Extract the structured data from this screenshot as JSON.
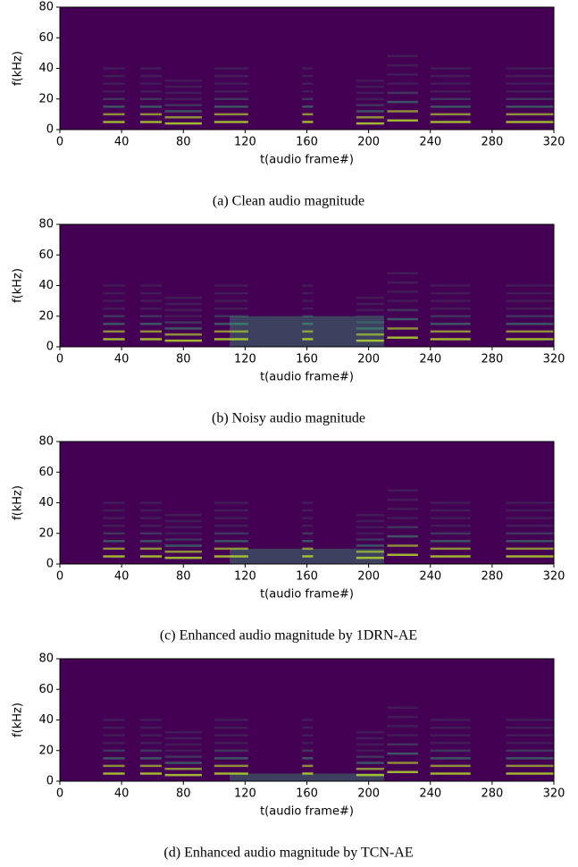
{
  "chart_data": [
    {
      "type": "spectrogram",
      "caption": "(a) Clean audio magnitude",
      "xlabel": "t(audio frame#)",
      "ylabel": "f(kHz)",
      "xlim": [
        0,
        320
      ],
      "ylim": [
        0,
        80
      ],
      "xticks": [
        0,
        40,
        80,
        120,
        160,
        200,
        240,
        280,
        320
      ],
      "yticks": [
        0,
        20,
        40,
        60,
        80
      ],
      "background": "#440154",
      "color": "#35b779",
      "segments": [
        {
          "t": [
            28,
            42
          ],
          "f0": 5
        },
        {
          "t": [
            52,
            66
          ],
          "f0": 5
        },
        {
          "t": [
            68,
            92
          ],
          "f0": 4
        },
        {
          "t": [
            100,
            122
          ],
          "f0": 5
        },
        {
          "t": [
            157,
            164
          ],
          "f0": 5
        },
        {
          "t": [
            192,
            210
          ],
          "f0": 4
        },
        {
          "t": [
            212,
            232
          ],
          "f0": 6
        },
        {
          "t": [
            240,
            266
          ],
          "f0": 5
        },
        {
          "t": [
            289,
            320
          ],
          "f0": 5
        }
      ]
    },
    {
      "type": "spectrogram",
      "caption": "(b) Noisy audio magnitude",
      "xlabel": "t(audio frame#)",
      "ylabel": "f(kHz)",
      "xlim": [
        0,
        320
      ],
      "ylim": [
        0,
        80
      ],
      "xticks": [
        0,
        40,
        80,
        120,
        160,
        200,
        240,
        280,
        320
      ],
      "yticks": [
        0,
        20,
        40,
        60,
        80
      ],
      "background": "#440154",
      "color": "#35b779",
      "noise": {
        "t": [
          110,
          210
        ],
        "fmax": 20
      },
      "segments": [
        {
          "t": [
            28,
            42
          ],
          "f0": 5
        },
        {
          "t": [
            52,
            66
          ],
          "f0": 5
        },
        {
          "t": [
            68,
            92
          ],
          "f0": 4
        },
        {
          "t": [
            100,
            122
          ],
          "f0": 5
        },
        {
          "t": [
            157,
            164
          ],
          "f0": 5
        },
        {
          "t": [
            192,
            210
          ],
          "f0": 4
        },
        {
          "t": [
            212,
            232
          ],
          "f0": 6
        },
        {
          "t": [
            240,
            266
          ],
          "f0": 5
        },
        {
          "t": [
            289,
            320
          ],
          "f0": 5
        }
      ]
    },
    {
      "type": "spectrogram",
      "caption": "(c) Enhanced audio magnitude by 1DRN-AE",
      "xlabel": "t(audio frame#)",
      "ylabel": "f(kHz)",
      "xlim": [
        0,
        320
      ],
      "ylim": [
        0,
        80
      ],
      "xticks": [
        0,
        40,
        80,
        120,
        160,
        200,
        240,
        280,
        320
      ],
      "yticks": [
        0,
        20,
        40,
        60,
        80
      ],
      "background": "#440154",
      "color": "#35b779",
      "noise": {
        "t": [
          110,
          210
        ],
        "fmax": 10
      },
      "segments": [
        {
          "t": [
            28,
            42
          ],
          "f0": 5
        },
        {
          "t": [
            52,
            66
          ],
          "f0": 5
        },
        {
          "t": [
            68,
            92
          ],
          "f0": 4
        },
        {
          "t": [
            100,
            122
          ],
          "f0": 5
        },
        {
          "t": [
            157,
            164
          ],
          "f0": 5
        },
        {
          "t": [
            192,
            210
          ],
          "f0": 4
        },
        {
          "t": [
            212,
            232
          ],
          "f0": 6
        },
        {
          "t": [
            240,
            266
          ],
          "f0": 5
        },
        {
          "t": [
            289,
            320
          ],
          "f0": 5
        }
      ]
    },
    {
      "type": "spectrogram",
      "caption": "(d) Enhanced audio magnitude by TCN-AE",
      "xlabel": "t(audio frame#)",
      "ylabel": "f(kHz)",
      "xlim": [
        0,
        320
      ],
      "ylim": [
        0,
        80
      ],
      "xticks": [
        0,
        40,
        80,
        120,
        160,
        200,
        240,
        280,
        320
      ],
      "yticks": [
        0,
        20,
        40,
        60,
        80
      ],
      "background": "#440154",
      "color": "#35b779",
      "noise": {
        "t": [
          110,
          210
        ],
        "fmax": 5
      },
      "segments": [
        {
          "t": [
            28,
            42
          ],
          "f0": 5
        },
        {
          "t": [
            52,
            66
          ],
          "f0": 5
        },
        {
          "t": [
            68,
            92
          ],
          "f0": 4
        },
        {
          "t": [
            100,
            122
          ],
          "f0": 5
        },
        {
          "t": [
            157,
            164
          ],
          "f0": 5
        },
        {
          "t": [
            192,
            210
          ],
          "f0": 4
        },
        {
          "t": [
            212,
            232
          ],
          "f0": 6
        },
        {
          "t": [
            240,
            266
          ],
          "f0": 5
        },
        {
          "t": [
            289,
            320
          ],
          "f0": 5
        }
      ]
    }
  ]
}
